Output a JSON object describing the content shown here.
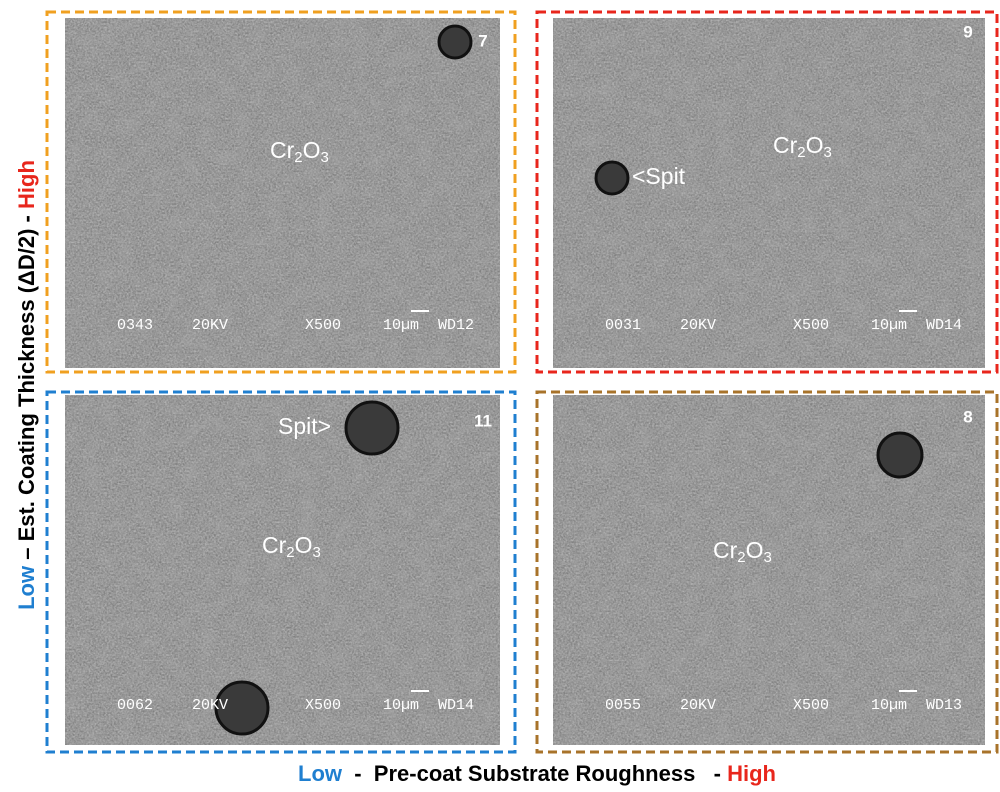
{
  "panels": [
    {
      "number": "7",
      "label": {
        "parts": [
          "Cr",
          "2",
          "O",
          "3"
        ]
      },
      "info": [
        "0343",
        "20KV",
        "X500",
        "10µm",
        "WD12"
      ]
    },
    {
      "number": "9",
      "label": {
        "parts": [
          "Cr",
          "2",
          "O",
          "3"
        ]
      },
      "annotation": "<Spit",
      "info": [
        "0031",
        "20KV",
        "X500",
        "10µm",
        "WD14"
      ]
    },
    {
      "number": "11",
      "label": {
        "parts": [
          "Cr",
          "2",
          "O",
          "3"
        ]
      },
      "annotation": "Spit>",
      "info": [
        "0062",
        "20KV",
        "X500",
        "10µm",
        "WD14"
      ]
    },
    {
      "number": "8",
      "label": {
        "parts": [
          "Cr",
          "2",
          "O",
          "3"
        ]
      },
      "info": [
        "0055",
        "20KV",
        "X500",
        "10µm",
        "WD13"
      ]
    }
  ],
  "y_axis": {
    "low": "Low",
    "text": " – Est. Coating Thickness (ΔD/2) - ",
    "high": "High"
  },
  "x_axis": {
    "low": "Low",
    "text": "  -  Pre-coat Substrate Roughness   - ",
    "high": "High"
  }
}
